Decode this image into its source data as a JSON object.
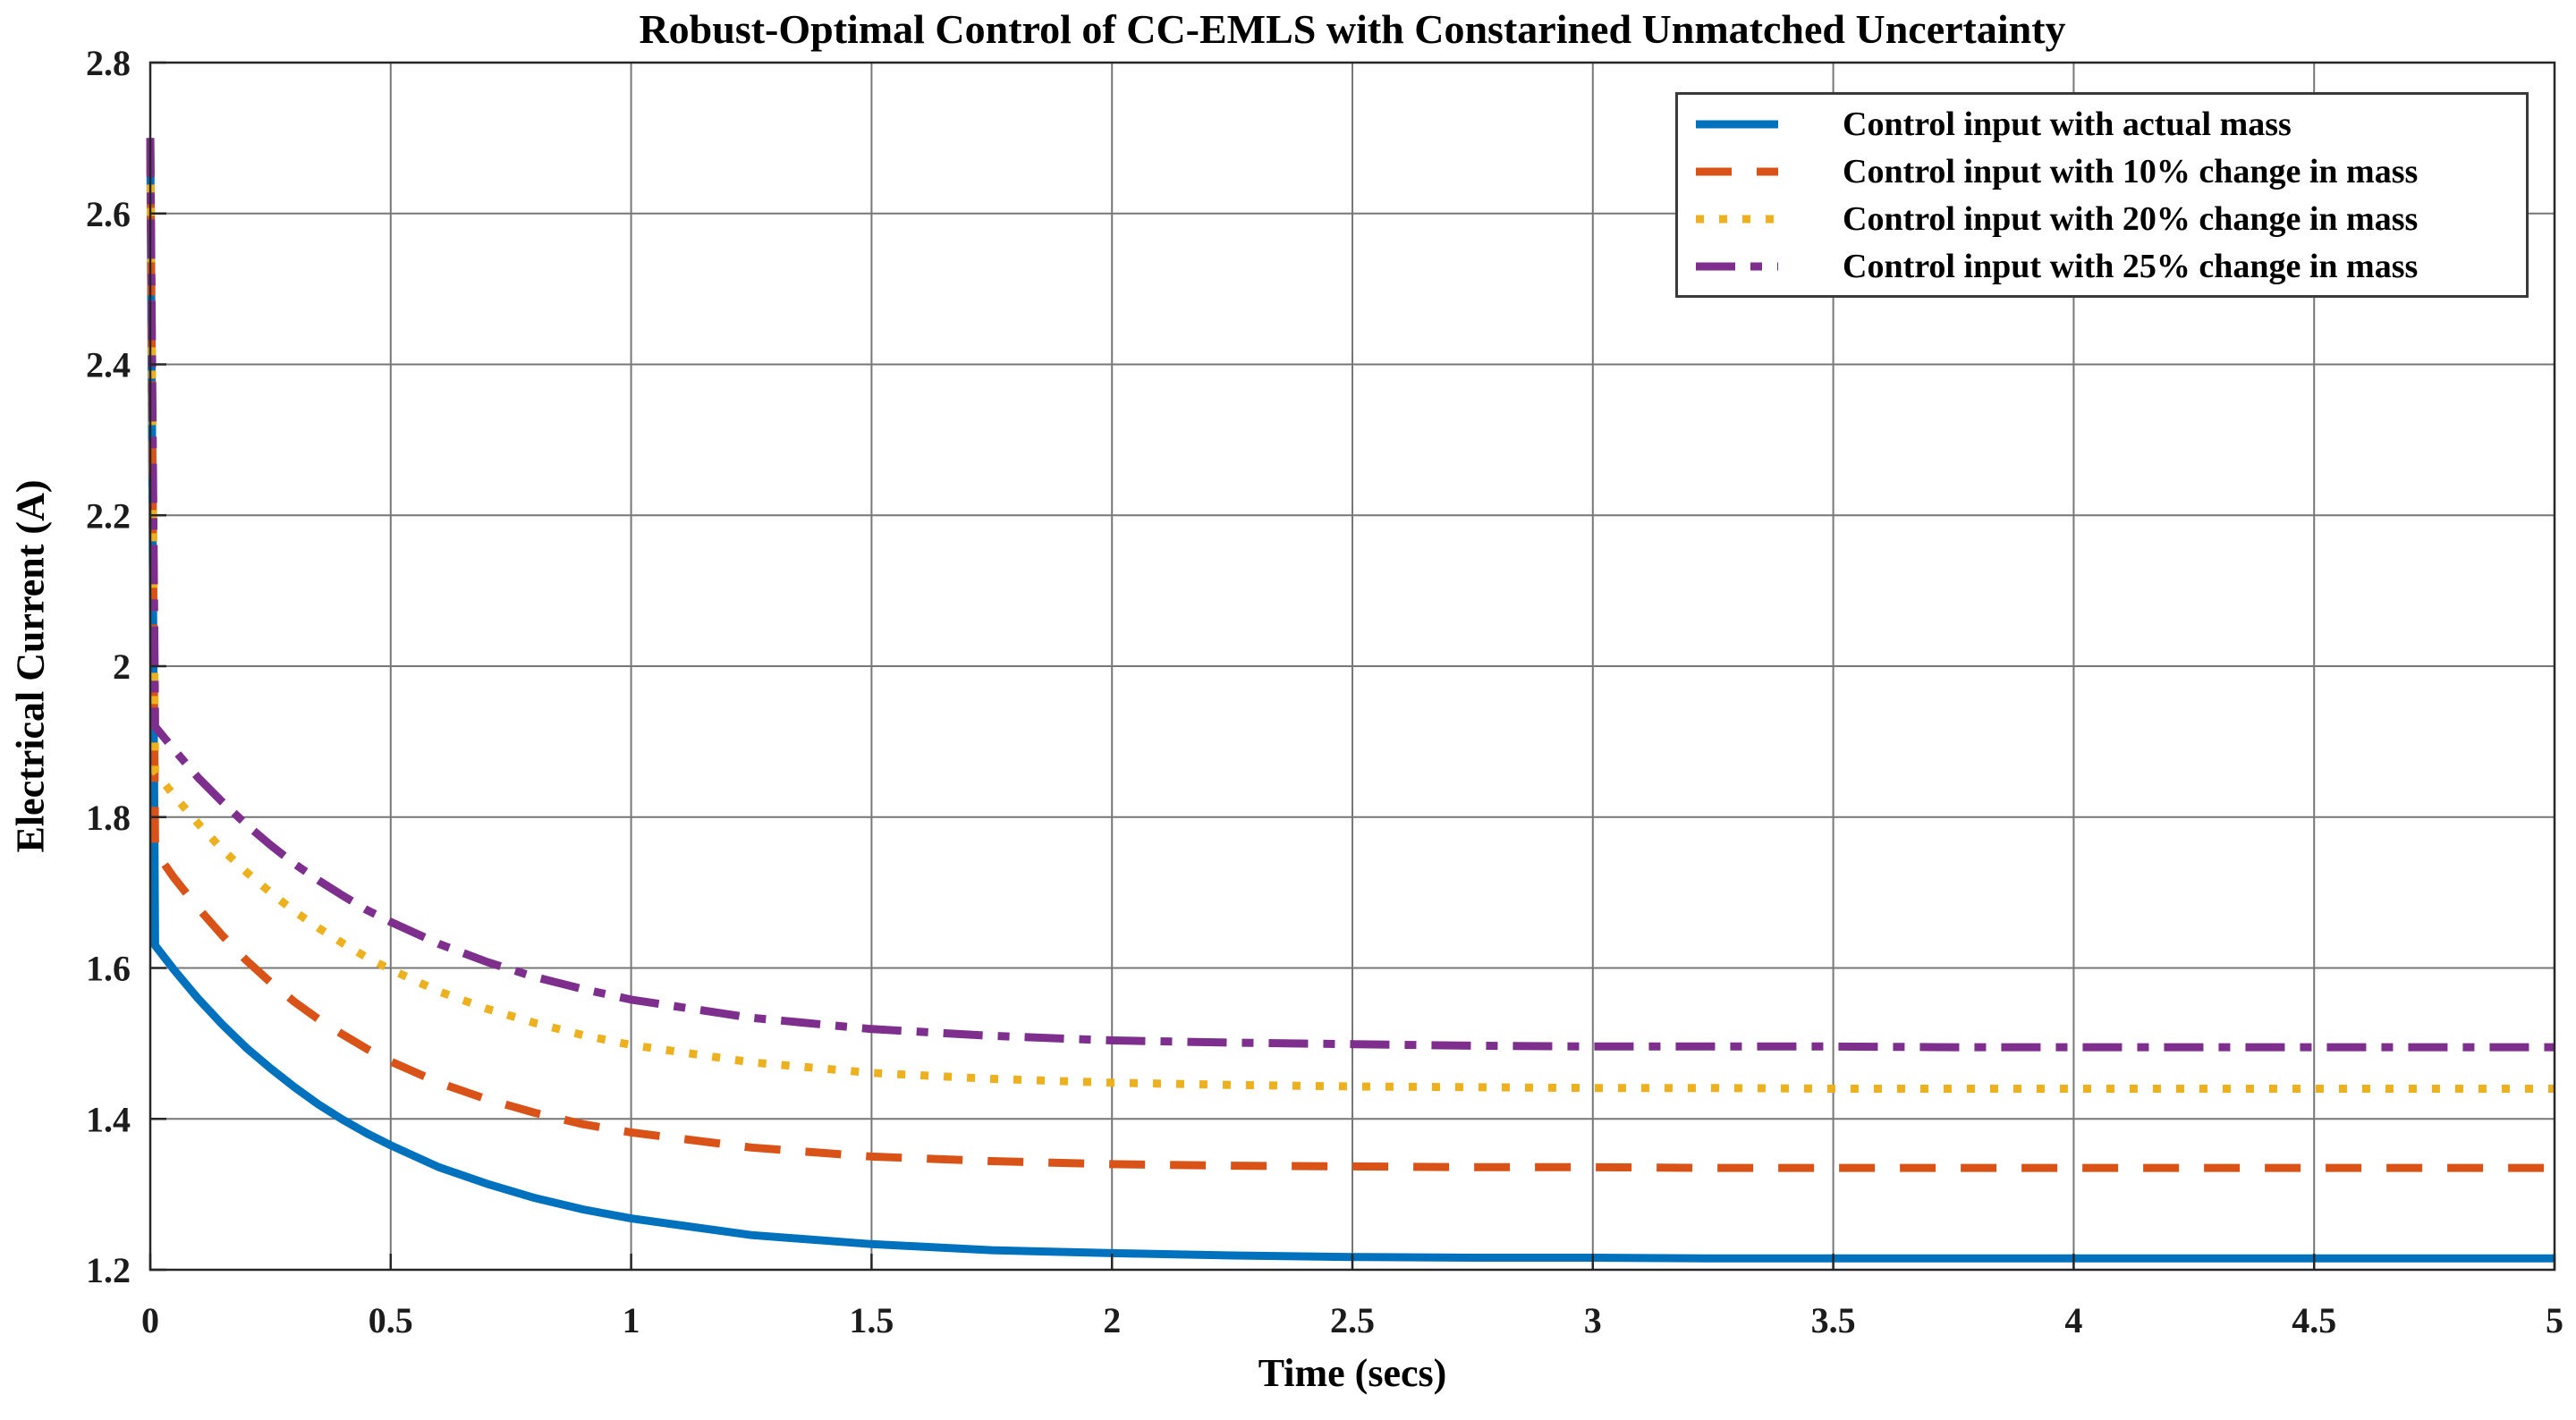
{
  "figure": {
    "background": "#ffffff",
    "axis_color": "#262626",
    "grid_color": "#777777",
    "legend_border_color": "#3a3a3a"
  },
  "chart_data": {
    "type": "line",
    "title": "Robust-Optimal Control of CC-EMLS with Constarined Unmatched Uncertainty",
    "xlabel": "Time (secs)",
    "ylabel": "Electrical Current (A)",
    "xlim": [
      0,
      5
    ],
    "ylim": [
      1.2,
      2.8
    ],
    "grid": true,
    "legend_position": "top-right",
    "x_ticks": [
      0,
      0.5,
      1,
      1.5,
      2,
      2.5,
      3,
      3.5,
      4,
      4.5,
      5
    ],
    "x_tick_labels": [
      "0",
      "0.5",
      "1",
      "1.5",
      "2",
      "2.5",
      "3",
      "3.5",
      "4",
      "4.5",
      "5"
    ],
    "y_ticks": [
      1.2,
      1.4,
      1.6,
      1.8,
      2,
      2.2,
      2.4,
      2.6,
      2.8
    ],
    "y_tick_labels": [
      "1.2",
      "1.4",
      "1.6",
      "1.8",
      "2",
      "2.2",
      "2.4",
      "2.6",
      "2.8"
    ],
    "x": [
      0,
      0.01,
      0.05,
      0.1,
      0.15,
      0.2,
      0.25,
      0.3,
      0.35,
      0.4,
      0.45,
      0.5,
      0.6,
      0.7,
      0.8,
      0.9,
      1.0,
      1.25,
      1.5,
      1.75,
      2.0,
      2.25,
      2.5,
      2.75,
      3.0,
      3.25,
      3.5,
      3.75,
      4.0,
      4.25,
      4.5,
      4.75,
      5.0
    ],
    "series": [
      {
        "name": "Control input with actual mass",
        "color": "#0072BD",
        "style": "solid",
        "peak_at_t0": 2.7,
        "steady_state": 1.215,
        "values": [
          2.7,
          1.63,
          1.597,
          1.559,
          1.525,
          1.494,
          1.467,
          1.442,
          1.419,
          1.399,
          1.381,
          1.365,
          1.336,
          1.314,
          1.295,
          1.28,
          1.268,
          1.246,
          1.234,
          1.226,
          1.222,
          1.219,
          1.217,
          1.216,
          1.216,
          1.215,
          1.215,
          1.215,
          1.215,
          1.215,
          1.215,
          1.215,
          1.215
        ]
      },
      {
        "name": "Control input with 10% change in mass",
        "color": "#D95319",
        "style": "dashed",
        "peak_at_t0": 2.7,
        "steady_state": 1.335,
        "values": [
          2.7,
          1.755,
          1.719,
          1.679,
          1.643,
          1.61,
          1.581,
          1.555,
          1.532,
          1.512,
          1.493,
          1.476,
          1.448,
          1.426,
          1.408,
          1.393,
          1.382,
          1.362,
          1.35,
          1.344,
          1.34,
          1.338,
          1.337,
          1.336,
          1.336,
          1.335,
          1.335,
          1.335,
          1.335,
          1.335,
          1.335,
          1.335,
          1.335
        ]
      },
      {
        "name": "Control input with 20% change in mass",
        "color": "#EDB120",
        "style": "dotted",
        "peak_at_t0": 2.7,
        "steady_state": 1.44,
        "values": [
          2.7,
          1.86,
          1.828,
          1.791,
          1.757,
          1.727,
          1.7,
          1.675,
          1.653,
          1.633,
          1.614,
          1.598,
          1.569,
          1.546,
          1.527,
          1.511,
          1.498,
          1.475,
          1.461,
          1.453,
          1.448,
          1.445,
          1.443,
          1.442,
          1.441,
          1.441,
          1.44,
          1.44,
          1.44,
          1.44,
          1.44,
          1.44,
          1.44
        ]
      },
      {
        "name": "Control input with 25% change in mass",
        "color": "#7E2F8E",
        "style": "dashdot",
        "peak_at_t0": 2.7,
        "steady_state": 1.495,
        "values": [
          2.7,
          1.92,
          1.889,
          1.852,
          1.82,
          1.79,
          1.763,
          1.738,
          1.716,
          1.696,
          1.677,
          1.661,
          1.632,
          1.608,
          1.588,
          1.572,
          1.558,
          1.534,
          1.519,
          1.51,
          1.504,
          1.501,
          1.499,
          1.497,
          1.496,
          1.496,
          1.496,
          1.495,
          1.495,
          1.495,
          1.495,
          1.495,
          1.495
        ]
      }
    ]
  }
}
